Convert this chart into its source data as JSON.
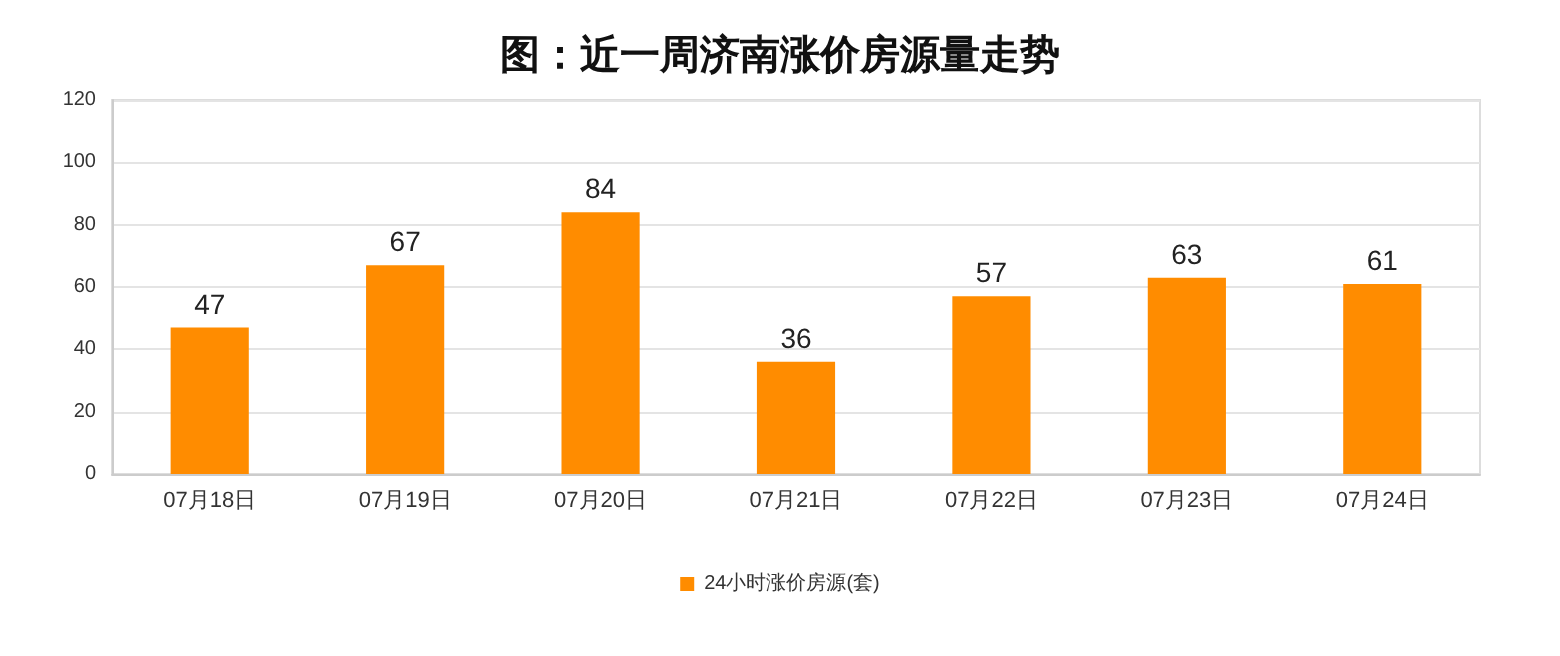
{
  "chart_data": {
    "type": "bar",
    "title": "图：近一周济南涨价房源量走势",
    "categories": [
      "07月18日",
      "07月19日",
      "07月20日",
      "07月21日",
      "07月22日",
      "07月23日",
      "07月24日"
    ],
    "series": [
      {
        "name": "24小时涨价房源(套)",
        "color": "#ff8c00",
        "values": [
          47,
          67,
          84,
          36,
          57,
          63,
          61
        ]
      }
    ],
    "ylim": [
      0,
      120
    ],
    "yticks": [
      0,
      20,
      40,
      60,
      80,
      100,
      120
    ],
    "grid": "y",
    "legend": "bottom",
    "data_labels": true
  }
}
